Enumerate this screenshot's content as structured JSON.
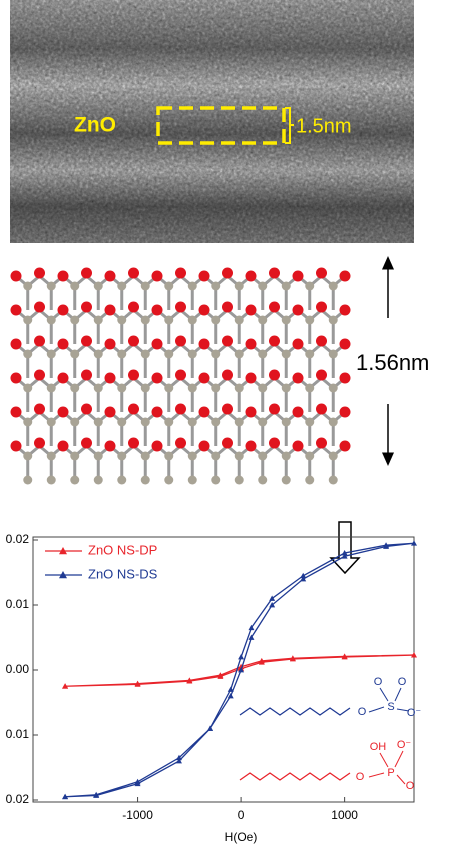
{
  "tem_image": {
    "label": "ZnO",
    "scale": "1.5nm"
  },
  "lattice": {
    "scale": "1.56nm"
  },
  "chart_data": {
    "type": "line",
    "xlabel": "H(Oe)",
    "xlim": [
      -2010,
      1670
    ],
    "xticks": [
      -1000,
      0,
      1000
    ],
    "ylim": [
      -0.02,
      0.02
    ],
    "yticks": [
      0.02,
      0.01,
      {
        "value": 0.0,
        "label": "0.00"
      },
      {
        "value": -0.01,
        "label": "0.01"
      },
      {
        "value": -0.02,
        "label": "0.02"
      }
    ],
    "legend": "upper left",
    "series": [
      {
        "name": "ZnO NS-DP",
        "color": "#e8242b",
        "x": [
          -1700,
          -1000,
          -500,
          -200,
          0,
          200,
          500,
          1000,
          1670,
          1000,
          500,
          200,
          0,
          -200,
          -500,
          -1000,
          -1700
        ],
        "values": [
          -0.0025,
          -0.0022,
          -0.0017,
          -0.001,
          0.0002,
          0.0012,
          0.0017,
          0.002,
          0.0023,
          0.0021,
          0.0018,
          0.0014,
          0.0005,
          -0.0008,
          -0.0016,
          -0.0021,
          -0.0025
        ]
      },
      {
        "name": "ZnO NS-DS",
        "color": "#1f3a93",
        "x": [
          -1700,
          -1400,
          -1000,
          -600,
          -300,
          -100,
          0,
          100,
          300,
          600,
          1000,
          1400,
          1670,
          1400,
          1000,
          600,
          300,
          100,
          0,
          -100,
          -300,
          -600,
          -1000,
          -1400,
          -1700
        ],
        "values": [
          -0.0195,
          -0.0193,
          -0.0175,
          -0.014,
          -0.009,
          -0.004,
          0.0,
          0.005,
          0.01,
          0.014,
          0.0175,
          0.019,
          0.0195,
          0.0192,
          0.018,
          0.0145,
          0.011,
          0.0065,
          0.002,
          -0.003,
          -0.009,
          -0.0135,
          -0.0172,
          -0.0192,
          -0.0195
        ]
      }
    ],
    "structures": [
      {
        "color": "#1f3a93",
        "labels": [
          "O",
          "S",
          "O",
          "O",
          "O⁻"
        ]
      },
      {
        "color": "#e8242b",
        "labels": [
          "O",
          "P",
          "OH",
          "O⁻",
          "O"
        ]
      }
    ]
  }
}
